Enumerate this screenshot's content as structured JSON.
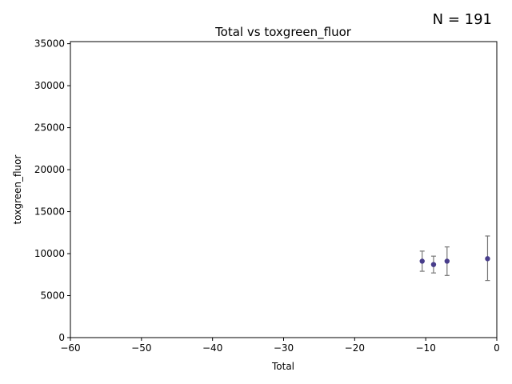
{
  "chart_data": {
    "type": "scatter",
    "title": "Total vs toxgreen_fluor",
    "annotation": "N = 191",
    "xlabel": "Total",
    "ylabel": "toxgreen_fluor",
    "xlim": [
      -60,
      0
    ],
    "ylim": [
      0,
      35250
    ],
    "xticks": [
      -60,
      -50,
      -40,
      -30,
      -20,
      -10,
      0
    ],
    "yticks": [
      0,
      5000,
      10000,
      15000,
      20000,
      25000,
      30000,
      35000
    ],
    "grid": false,
    "colors": {
      "point": "#483d8b",
      "errorbar": "#777777"
    },
    "points": [
      {
        "x": -10.5,
        "y": 9100,
        "err_low": 7900,
        "err_high": 10300
      },
      {
        "x": -8.9,
        "y": 8700,
        "err_low": 7700,
        "err_high": 9700
      },
      {
        "x": -7.0,
        "y": 9100,
        "err_low": 7400,
        "err_high": 10800
      },
      {
        "x": -1.3,
        "y": 9400,
        "err_low": 6800,
        "err_high": 12100
      }
    ]
  }
}
